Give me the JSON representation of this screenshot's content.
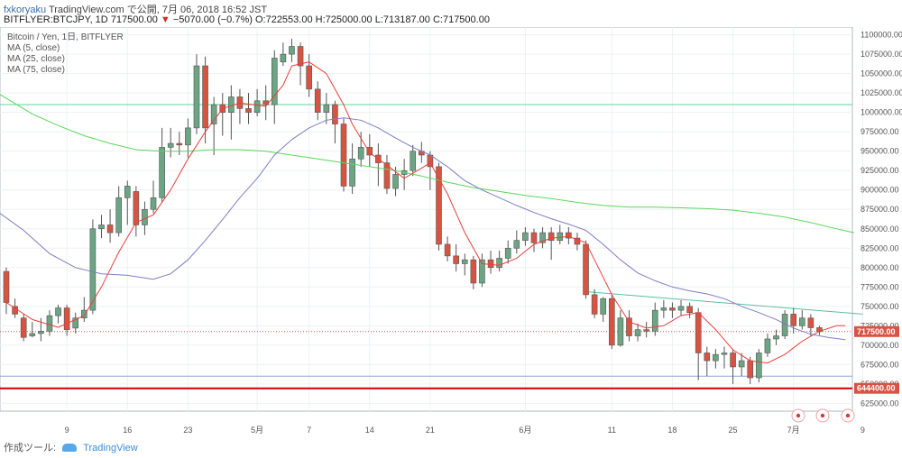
{
  "header": {
    "author": "fxkoryaku",
    "publish_text": "TradingView.com で公開, 7月 06, 2018 16:52 JST",
    "symbol": "BITFLYER:BTCJPY, 1D",
    "last_price": "717500.00",
    "change": "−5070.00 (−0.7%)",
    "open": "O:722553.00",
    "high": "H:725000.00",
    "low": "L:713187.00",
    "close": "C:717500.00"
  },
  "legend": {
    "main": "Bitcoin / Yen, 1日, BITFLYER",
    "ma5": "MA (5, close)",
    "ma25": "MA (25, close)",
    "ma75": "MA (75, close)"
  },
  "footer": {
    "label": "作成ツール:",
    "brand": "TradingView"
  },
  "colors": {
    "up": "#6ba583",
    "down": "#d75442",
    "ma5": "#e8403a",
    "ma25": "#7b7fc4",
    "ma75": "#5cd65c",
    "hline_green": "#5cd6a0",
    "trend": "#5cbf9e",
    "support": "#d40000",
    "blue_line": "#8fa3d6",
    "price_label": "#d75442"
  },
  "chart_data": {
    "type": "candlestick",
    "ylim": [
      615000,
      1110000
    ],
    "y_ticks": [
      625000,
      650000,
      675000,
      700000,
      725000,
      750000,
      775000,
      800000,
      825000,
      850000,
      875000,
      900000,
      925000,
      950000,
      975000,
      1000000,
      1025000,
      1050000,
      1075000,
      1100000
    ],
    "x_ticks": [
      {
        "i": 7,
        "label": "9"
      },
      {
        "i": 14,
        "label": "16"
      },
      {
        "i": 21,
        "label": "23"
      },
      {
        "i": 29,
        "label": "5月"
      },
      {
        "i": 35,
        "label": "7"
      },
      {
        "i": 42,
        "label": "14"
      },
      {
        "i": 49,
        "label": "21"
      },
      {
        "i": 60,
        "label": "6月"
      },
      {
        "i": 70,
        "label": "11"
      },
      {
        "i": 77,
        "label": "18"
      },
      {
        "i": 84,
        "label": "25"
      },
      {
        "i": 91,
        "label": "7月"
      },
      {
        "i": 99,
        "label": "9"
      }
    ],
    "candles": [
      [
        795000,
        755000,
        800000,
        740000
      ],
      [
        750000,
        740000,
        760000,
        735000
      ],
      [
        735000,
        710000,
        740000,
        705000
      ],
      [
        712000,
        715000,
        730000,
        710000
      ],
      [
        715000,
        718000,
        735000,
        705000
      ],
      [
        718000,
        738000,
        745000,
        712000
      ],
      [
        738000,
        748000,
        752000,
        728000
      ],
      [
        748000,
        720000,
        752000,
        712000
      ],
      [
        722000,
        735000,
        742000,
        715000
      ],
      [
        735000,
        745000,
        762000,
        730000
      ],
      [
        745000,
        850000,
        862000,
        740000
      ],
      [
        850000,
        855000,
        868000,
        838000
      ],
      [
        855000,
        845000,
        875000,
        832000
      ],
      [
        845000,
        890000,
        905000,
        840000
      ],
      [
        890000,
        905000,
        912000,
        855000
      ],
      [
        898000,
        855000,
        905000,
        840000
      ],
      [
        855000,
        875000,
        885000,
        842000
      ],
      [
        875000,
        890000,
        912000,
        870000
      ],
      [
        890000,
        955000,
        980000,
        885000
      ],
      [
        955000,
        960000,
        980000,
        942000
      ],
      [
        960000,
        958000,
        975000,
        945000
      ],
      [
        958000,
        980000,
        992000,
        942000
      ],
      [
        980000,
        1060000,
        1075000,
        972000
      ],
      [
        1060000,
        980000,
        1072000,
        960000
      ],
      [
        985000,
        1010000,
        1020000,
        945000
      ],
      [
        1010000,
        1000000,
        1025000,
        970000
      ],
      [
        1000000,
        1020000,
        1035000,
        965000
      ],
      [
        1020000,
        1005000,
        1030000,
        985000
      ],
      [
        1005000,
        1000000,
        1025000,
        985000
      ],
      [
        1000000,
        1015000,
        1030000,
        995000
      ],
      [
        1015000,
        1010000,
        1035000,
        990000
      ],
      [
        1010000,
        1070000,
        1080000,
        985000
      ],
      [
        1065000,
        1075000,
        1090000,
        1060000
      ],
      [
        1075000,
        1085000,
        1095000,
        1065000
      ],
      [
        1085000,
        1060000,
        1090000,
        1035000
      ],
      [
        1060000,
        1030000,
        1075000,
        1020000
      ],
      [
        1030000,
        1000000,
        1040000,
        990000
      ],
      [
        1000000,
        1010000,
        1025000,
        985000
      ],
      [
        1010000,
        985000,
        1015000,
        960000
      ],
      [
        985000,
        905000,
        992000,
        898000
      ],
      [
        905000,
        940000,
        960000,
        895000
      ],
      [
        940000,
        955000,
        975000,
        930000
      ],
      [
        955000,
        945000,
        972000,
        930000
      ],
      [
        945000,
        935000,
        960000,
        905000
      ],
      [
        935000,
        902000,
        945000,
        895000
      ],
      [
        902000,
        920000,
        930000,
        892000
      ],
      [
        920000,
        925000,
        940000,
        900000
      ],
      [
        925000,
        950000,
        958000,
        918000
      ],
      [
        950000,
        945000,
        962000,
        935000
      ],
      [
        945000,
        930000,
        950000,
        900000
      ],
      [
        930000,
        830000,
        935000,
        822000
      ],
      [
        830000,
        815000,
        840000,
        808000
      ],
      [
        815000,
        805000,
        830000,
        795000
      ],
      [
        805000,
        810000,
        818000,
        790000
      ],
      [
        810000,
        780000,
        815000,
        772000
      ],
      [
        780000,
        810000,
        818000,
        775000
      ],
      [
        810000,
        800000,
        822000,
        792000
      ],
      [
        800000,
        812000,
        822000,
        795000
      ],
      [
        812000,
        825000,
        835000,
        805000
      ],
      [
        825000,
        835000,
        848000,
        818000
      ],
      [
        835000,
        845000,
        852000,
        828000
      ],
      [
        845000,
        832000,
        850000,
        820000
      ],
      [
        832000,
        845000,
        852000,
        825000
      ],
      [
        845000,
        835000,
        852000,
        810000
      ],
      [
        835000,
        845000,
        855000,
        830000
      ],
      [
        845000,
        838000,
        852000,
        830000
      ],
      [
        838000,
        830000,
        845000,
        822000
      ],
      [
        830000,
        765000,
        835000,
        760000
      ],
      [
        765000,
        740000,
        772000,
        735000
      ],
      [
        740000,
        760000,
        762000,
        730000
      ],
      [
        760000,
        700000,
        765000,
        695000
      ],
      [
        700000,
        735000,
        745000,
        698000
      ],
      [
        735000,
        712000,
        745000,
        705000
      ],
      [
        712000,
        720000,
        728000,
        705000
      ],
      [
        720000,
        718000,
        730000,
        710000
      ],
      [
        718000,
        745000,
        755000,
        712000
      ],
      [
        745000,
        748000,
        758000,
        735000
      ],
      [
        748000,
        745000,
        755000,
        735000
      ],
      [
        745000,
        750000,
        758000,
        738000
      ],
      [
        750000,
        742000,
        755000,
        735000
      ],
      [
        742000,
        690000,
        748000,
        655000
      ],
      [
        690000,
        680000,
        698000,
        660000
      ],
      [
        680000,
        688000,
        695000,
        670000
      ],
      [
        688000,
        690000,
        698000,
        670000
      ],
      [
        690000,
        672000,
        695000,
        650000
      ],
      [
        672000,
        680000,
        690000,
        660000
      ],
      [
        680000,
        658000,
        685000,
        650000
      ],
      [
        658000,
        690000,
        695000,
        652000
      ],
      [
        690000,
        708000,
        715000,
        685000
      ],
      [
        708000,
        712000,
        720000,
        700000
      ],
      [
        712000,
        740000,
        745000,
        708000
      ],
      [
        740000,
        725000,
        748000,
        715000
      ],
      [
        725000,
        735000,
        745000,
        720000
      ],
      [
        735000,
        722500,
        740000,
        712000
      ],
      [
        722553,
        717500,
        725000,
        713187
      ]
    ],
    "current_price": 717500,
    "current_price_label": "717500.00",
    "support_level": 644400,
    "support_label": "644400.00",
    "blue_level": 660000,
    "hline_green_level": 1010000,
    "trendline": {
      "from": [
        67,
        769000
      ],
      "to": [
        99,
        740000
      ]
    },
    "ma5": [
      [
        0,
        755000
      ],
      [
        3,
        733000
      ],
      [
        6,
        723000
      ],
      [
        9,
        738000
      ],
      [
        11,
        775000
      ],
      [
        13,
        820000
      ],
      [
        15,
        858000
      ],
      [
        17,
        868000
      ],
      [
        19,
        900000
      ],
      [
        21,
        940000
      ],
      [
        23,
        975000
      ],
      [
        25,
        1005000
      ],
      [
        27,
        1012000
      ],
      [
        30,
        1008000
      ],
      [
        32,
        1035000
      ],
      [
        33,
        1060000
      ],
      [
        35,
        1065000
      ],
      [
        37,
        1050000
      ],
      [
        39,
        1010000
      ],
      [
        40,
        985000
      ],
      [
        42,
        948000
      ],
      [
        44,
        932000
      ],
      [
        46,
        915000
      ],
      [
        48,
        928000
      ],
      [
        49,
        935000
      ],
      [
        51,
        895000
      ],
      [
        53,
        845000
      ],
      [
        55,
        805000
      ],
      [
        57,
        803000
      ],
      [
        59,
        812000
      ],
      [
        61,
        830000
      ],
      [
        63,
        838000
      ],
      [
        65,
        840000
      ],
      [
        67,
        832000
      ],
      [
        68,
        810000
      ],
      [
        70,
        765000
      ],
      [
        72,
        730000
      ],
      [
        74,
        722000
      ],
      [
        76,
        725000
      ],
      [
        78,
        738000
      ],
      [
        80,
        742000
      ],
      [
        82,
        720000
      ],
      [
        84,
        694000
      ],
      [
        86,
        680000
      ],
      [
        88,
        677000
      ],
      [
        90,
        688000
      ],
      [
        92,
        705000
      ],
      [
        94,
        718000
      ],
      [
        96,
        725000
      ],
      [
        97,
        725000
      ]
    ],
    "ma25": [
      [
        -1,
        872000
      ],
      [
        2,
        848000
      ],
      [
        5,
        818000
      ],
      [
        8,
        800000
      ],
      [
        11,
        792000
      ],
      [
        14,
        790000
      ],
      [
        17,
        785000
      ],
      [
        19,
        792000
      ],
      [
        21,
        810000
      ],
      [
        23,
        835000
      ],
      [
        25,
        862000
      ],
      [
        27,
        890000
      ],
      [
        29,
        915000
      ],
      [
        31,
        945000
      ],
      [
        33,
        965000
      ],
      [
        35,
        980000
      ],
      [
        37,
        990000
      ],
      [
        39,
        993000
      ],
      [
        41,
        990000
      ],
      [
        43,
        980000
      ],
      [
        45,
        967000
      ],
      [
        47,
        955000
      ],
      [
        49,
        945000
      ],
      [
        51,
        930000
      ],
      [
        53,
        912000
      ],
      [
        55,
        900000
      ],
      [
        57,
        890000
      ],
      [
        59,
        880000
      ],
      [
        61,
        871000
      ],
      [
        63,
        863000
      ],
      [
        65,
        856000
      ],
      [
        67,
        848000
      ],
      [
        69,
        830000
      ],
      [
        71,
        810000
      ],
      [
        73,
        793000
      ],
      [
        75,
        783000
      ],
      [
        77,
        775000
      ],
      [
        79,
        770000
      ],
      [
        81,
        766000
      ],
      [
        83,
        760000
      ],
      [
        85,
        750000
      ],
      [
        87,
        742000
      ],
      [
        89,
        733000
      ],
      [
        91,
        722000
      ],
      [
        93,
        714000
      ],
      [
        95,
        710000
      ],
      [
        97,
        707000
      ]
    ],
    "ma75": [
      [
        -1,
        1025000
      ],
      [
        3,
        998000
      ],
      [
        6,
        983000
      ],
      [
        9,
        970000
      ],
      [
        12,
        960000
      ],
      [
        15,
        952000
      ],
      [
        18,
        950000
      ],
      [
        21,
        950000
      ],
      [
        24,
        952000
      ],
      [
        27,
        952000
      ],
      [
        30,
        950000
      ],
      [
        33,
        945000
      ],
      [
        36,
        940000
      ],
      [
        39,
        935000
      ],
      [
        42,
        930000
      ],
      [
        45,
        925000
      ],
      [
        48,
        918000
      ],
      [
        51,
        910000
      ],
      [
        54,
        903000
      ],
      [
        57,
        898000
      ],
      [
        60,
        893000
      ],
      [
        63,
        889000
      ],
      [
        66,
        884000
      ],
      [
        69,
        880000
      ],
      [
        72,
        878000
      ],
      [
        75,
        878000
      ],
      [
        78,
        877000
      ],
      [
        81,
        876000
      ],
      [
        84,
        874000
      ],
      [
        87,
        870000
      ],
      [
        90,
        865000
      ],
      [
        93,
        858000
      ],
      [
        96,
        850000
      ],
      [
        98,
        845000
      ]
    ]
  }
}
